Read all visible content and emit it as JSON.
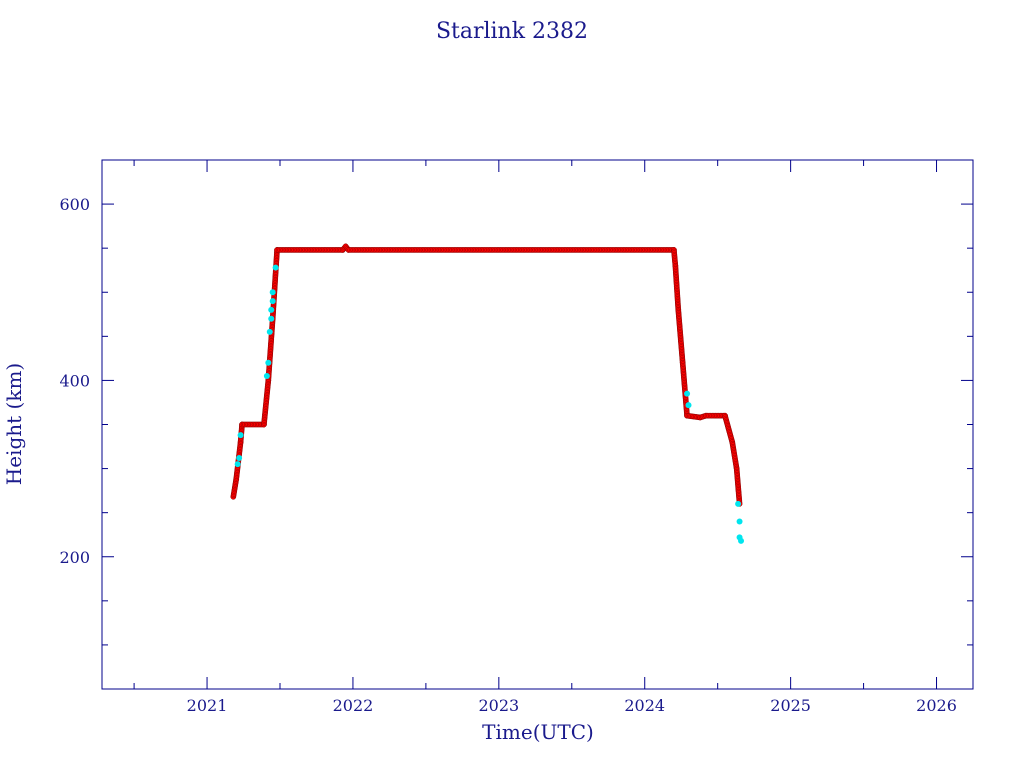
{
  "chart_data": {
    "type": "scatter",
    "title": "Starlink 2382",
    "xlabel": "Time(UTC)",
    "ylabel": "Height (km)",
    "xlim": [
      2020.28,
      2026.25
    ],
    "ylim": [
      50,
      650
    ],
    "x_ticks": [
      2021,
      2022,
      2023,
      2024,
      2025,
      2026
    ],
    "y_ticks": [
      200,
      400,
      600
    ],
    "grid": false,
    "legend": "none",
    "colors": {
      "axis": "#00008b",
      "text": "#1a1a8c",
      "primary_points": "#ff0000",
      "primary_edge": "#8b0000",
      "secondary_points": "#00e5ee"
    },
    "series": [
      {
        "color": "#ff0000",
        "segments": [
          [
            [
              2021.18,
              268
            ],
            [
              2021.2,
              288
            ],
            [
              2021.23,
              330
            ],
            [
              2021.24,
              350
            ]
          ],
          [
            [
              2021.24,
              350
            ],
            [
              2021.39,
              350
            ]
          ],
          [
            [
              2021.39,
              350
            ],
            [
              2021.42,
              400
            ],
            [
              2021.45,
              470
            ],
            [
              2021.48,
              548
            ]
          ],
          [
            [
              2021.48,
              548
            ],
            [
              2021.93,
              548
            ],
            [
              2021.95,
              552
            ],
            [
              2021.97,
              548
            ],
            [
              2024.2,
              548
            ]
          ],
          [
            [
              2024.2,
              548
            ],
            [
              2024.21,
              530
            ],
            [
              2024.23,
              480
            ],
            [
              2024.26,
              420
            ],
            [
              2024.29,
              360
            ]
          ],
          [
            [
              2024.29,
              360
            ],
            [
              2024.38,
              358
            ],
            [
              2024.42,
              360
            ],
            [
              2024.55,
              360
            ]
          ],
          [
            [
              2024.55,
              360
            ],
            [
              2024.6,
              330
            ],
            [
              2024.63,
              300
            ],
            [
              2024.65,
              260
            ]
          ]
        ]
      },
      {
        "color": "#00e5ee",
        "points": [
          [
            2021.21,
            305
          ],
          [
            2021.22,
            312
          ],
          [
            2021.23,
            338
          ],
          [
            2021.41,
            405
          ],
          [
            2021.42,
            420
          ],
          [
            2021.43,
            455
          ],
          [
            2021.44,
            470
          ],
          [
            2021.44,
            480
          ],
          [
            2021.45,
            490
          ],
          [
            2021.45,
            500
          ],
          [
            2021.47,
            528
          ],
          [
            2024.29,
            385
          ],
          [
            2024.3,
            372
          ],
          [
            2024.64,
            260
          ],
          [
            2024.65,
            240
          ],
          [
            2024.65,
            222
          ],
          [
            2024.66,
            218
          ]
        ]
      }
    ]
  }
}
